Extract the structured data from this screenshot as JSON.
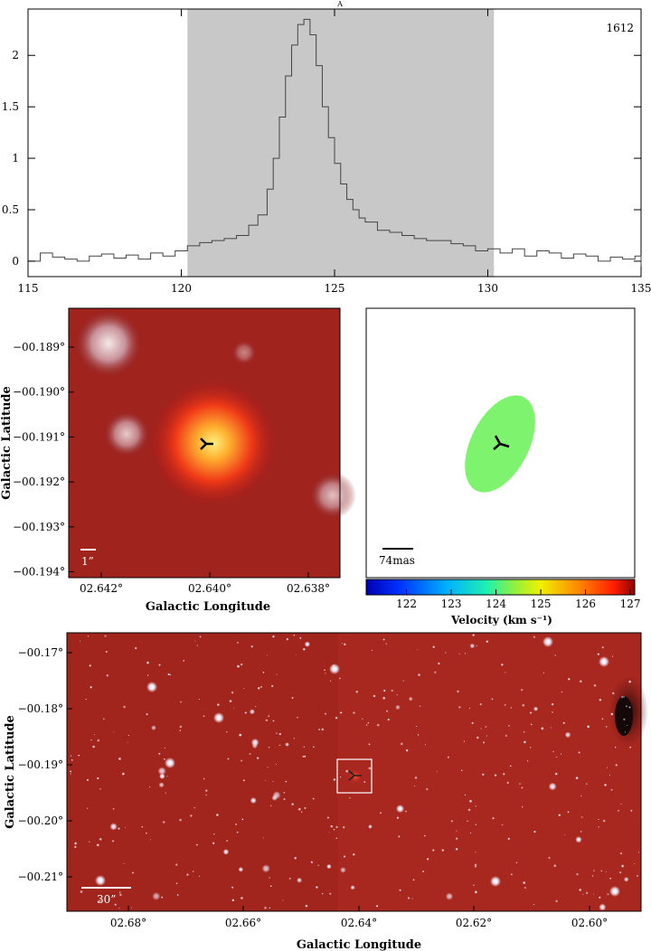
{
  "spectrum": {
    "top_label": "A",
    "source_id": "1612"
  },
  "chart_data": [
    {
      "type": "line",
      "title": "",
      "xlabel": "",
      "ylabel": "",
      "xlim": [
        115,
        135
      ],
      "ylim": [
        -0.15,
        2.45
      ],
      "xticks": [
        115,
        120,
        125,
        130,
        135
      ],
      "yticks": [
        0,
        0.5,
        1,
        1.5,
        2
      ],
      "ytick_labels": [
        "0",
        "0.5",
        "1",
        "1.5",
        "2"
      ],
      "shaded_region": [
        120.2,
        130.2
      ],
      "grid": false,
      "series": [
        {
          "x": [
            115.0,
            115.4,
            115.8,
            116.2,
            116.6,
            117.0,
            117.4,
            117.8,
            118.2,
            118.6,
            119.0,
            119.4,
            119.8,
            120.2,
            120.6,
            121.0,
            121.4,
            121.8,
            122.2,
            122.5,
            122.8,
            123.0,
            123.2,
            123.4,
            123.6,
            123.8,
            124.0,
            124.2,
            124.4,
            124.6,
            124.8,
            125.0,
            125.2,
            125.4,
            125.6,
            125.8,
            126.0,
            126.4,
            126.8,
            127.2,
            127.6,
            128.0,
            128.4,
            128.8,
            129.2,
            129.6,
            130.0,
            130.4,
            130.8,
            131.2,
            131.6,
            132.0,
            132.4,
            132.8,
            133.2,
            133.6,
            134.0,
            134.4,
            134.8,
            135.0
          ],
          "y": [
            0.0,
            0.08,
            0.04,
            0.02,
            0.0,
            0.05,
            0.07,
            0.03,
            0.06,
            0.02,
            0.08,
            0.05,
            0.1,
            0.15,
            0.18,
            0.2,
            0.22,
            0.25,
            0.35,
            0.45,
            0.7,
            1.0,
            1.4,
            1.8,
            2.1,
            2.3,
            2.35,
            2.2,
            1.9,
            1.5,
            1.2,
            0.95,
            0.75,
            0.6,
            0.5,
            0.42,
            0.38,
            0.3,
            0.28,
            0.25,
            0.22,
            0.2,
            0.2,
            0.17,
            0.15,
            0.1,
            0.12,
            0.08,
            0.12,
            0.05,
            0.1,
            0.08,
            0.03,
            0.07,
            0.05,
            0.0,
            0.04,
            0.02,
            0.05,
            -0.05
          ]
        }
      ]
    },
    {
      "type": "heatmap",
      "ylabel": "Galactic Latitude",
      "xlabel": "Galactic Longitude",
      "xticks": [
        "02.642°",
        "02.640°",
        "02.638°"
      ],
      "yticks": [
        "−00.189°",
        "−00.190°",
        "−00.191°",
        "−00.192°",
        "−00.193°",
        "−00.194°"
      ],
      "scalebar_label": "1”"
    },
    {
      "type": "scatter",
      "scalebar_label": "74mas",
      "colorbar": {
        "label": "Velocity (km s⁻¹)",
        "ticks": [
          "122",
          "123",
          "124",
          "125",
          "126",
          "127"
        ],
        "range": [
          121.1,
          127.1
        ]
      },
      "points": [
        {
          "velocity": 124.4,
          "color": "#7df36e"
        }
      ]
    },
    {
      "type": "heatmap",
      "ylabel": "Galactic Latitude",
      "xlabel": "Galactic Longitude",
      "xticks": [
        "02.68°",
        "02.66°",
        "02.64°",
        "02.62°",
        "02.60°"
      ],
      "yticks": [
        "−00.17°",
        "−00.18°",
        "−00.19°",
        "−00.20°",
        "−00.21°"
      ],
      "scalebar_label": "30”"
    }
  ]
}
